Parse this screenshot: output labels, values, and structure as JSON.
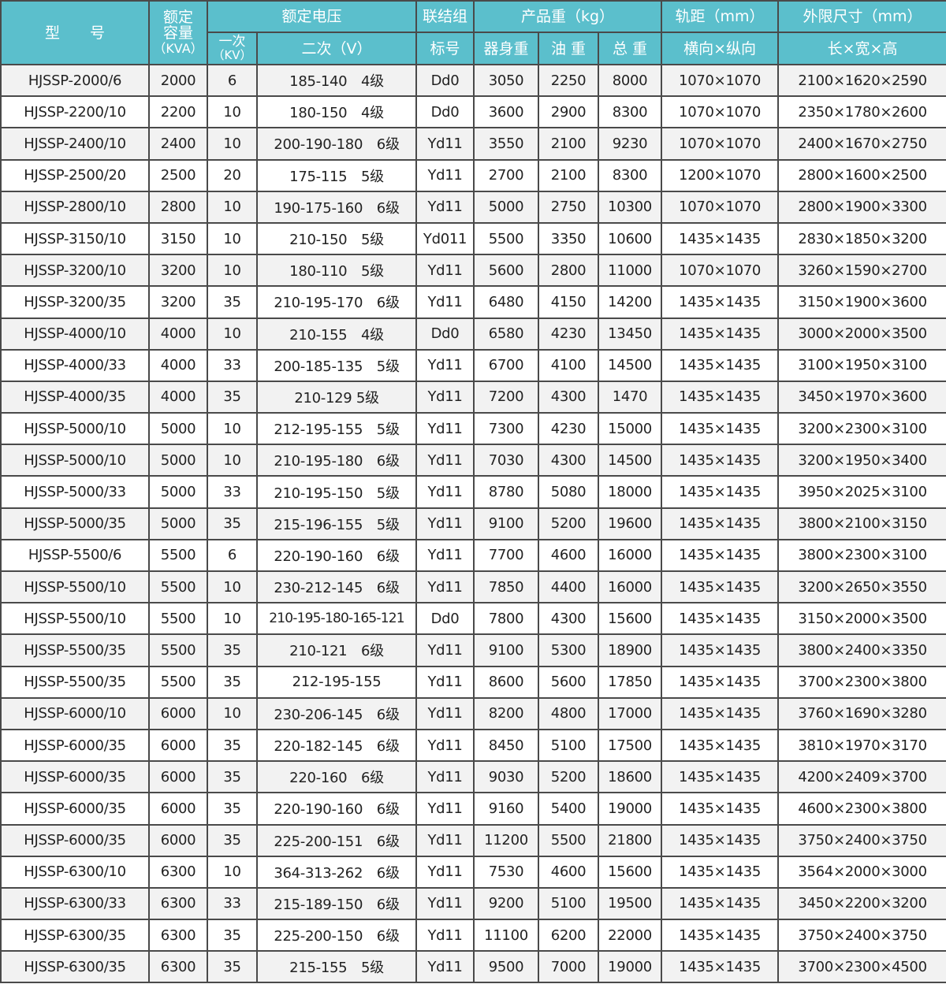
{
  "header": {
    "model": "型　　号",
    "capacity": [
      "额定",
      "容量",
      "（KVA）"
    ],
    "voltage": "额定电压",
    "primary": [
      "一次",
      "（KV）"
    ],
    "secondary": "二次（V）",
    "group": [
      "联结组",
      "标号"
    ],
    "weight": "产品重（kg）",
    "body_weight": "器身重",
    "oil_weight": "油 重",
    "total_weight": "总 重",
    "gauge": "轨距（mm）",
    "gauge_sub": "横向×纵向",
    "dims": "外限尺寸（mm）",
    "dims_sub": "长×宽×高"
  },
  "header_color": "#5bbfcc",
  "rows": [
    [
      "HJSSP-2000/6",
      "2000",
      "6",
      "185-140　4级",
      "Dd0",
      "3050",
      "2250",
      "8000",
      "1070×1070",
      "2100×1620×2590"
    ],
    [
      "HJSSP-2200/10",
      "2200",
      "10",
      "180-150　4级",
      "Dd0",
      "3600",
      "2900",
      "8300",
      "1070×1070",
      "2350×1780×2600"
    ],
    [
      "HJSSP-2400/10",
      "2400",
      "10",
      "200-190-180　6级",
      "Yd11",
      "3550",
      "2100",
      "9230",
      "1070×1070",
      "2400×1670×2750"
    ],
    [
      "HJSSP-2500/20",
      "2500",
      "20",
      "175-115　5级",
      "Yd11",
      "2700",
      "2100",
      "8300",
      "1200×1070",
      "2800×1600×2500"
    ],
    [
      "HJSSP-2800/10",
      "2800",
      "10",
      "190-175-160　6级",
      "Yd11",
      "5000",
      "2750",
      "10300",
      "1070×1070",
      "2800×1900×3300"
    ],
    [
      "HJSSP-3150/10",
      "3150",
      "10",
      "210-150　5级",
      "Yd011",
      "5500",
      "3350",
      "10600",
      "1435×1435",
      "2830×1850×3200"
    ],
    [
      "HJSSP-3200/10",
      "3200",
      "10",
      "180-110　5级",
      "Yd11",
      "5600",
      "2800",
      "11000",
      "1070×1070",
      "3260×1590×2700"
    ],
    [
      "HJSSP-3200/35",
      "3200",
      "35",
      "210-195-170　6级",
      "Yd11",
      "6480",
      "4150",
      "14200",
      "1435×1435",
      "3150×1900×3600"
    ],
    [
      "HJSSP-4000/10",
      "4000",
      "10",
      "210-155　4级",
      "Dd0",
      "6580",
      "4230",
      "13450",
      "1435×1435",
      "3000×2000×3500"
    ],
    [
      "HJSSP-4000/33",
      "4000",
      "33",
      "200-185-135　5级",
      "Yd11",
      "6700",
      "4100",
      "14500",
      "1435×1435",
      "3100×1950×3100"
    ],
    [
      "HJSSP-4000/35",
      "4000",
      "35",
      "210-129 5级",
      "Yd11",
      "7200",
      "4300",
      "1470",
      "1435×1435",
      "3450×1970×3600"
    ],
    [
      "HJSSP-5000/10",
      "5000",
      "10",
      "212-195-155　5级",
      "Yd11",
      "7300",
      "4230",
      "15000",
      "1435×1435",
      "3200×2300×3100"
    ],
    [
      "HJSSP-5000/10",
      "5000",
      "10",
      "210-195-180　6级",
      "Yd11",
      "7030",
      "4300",
      "14500",
      "1435×1435",
      "3200×1950×3400"
    ],
    [
      "HJSSP-5000/33",
      "5000",
      "33",
      "210-195-150　5级",
      "Yd11",
      "8780",
      "5080",
      "18000",
      "1435×1435",
      "3950×2025×3100"
    ],
    [
      "HJSSP-5000/35",
      "5000",
      "35",
      "215-196-155　5级",
      "Yd11",
      "9100",
      "5200",
      "19600",
      "1435×1435",
      "3800×2100×3150"
    ],
    [
      "HJSSP-5500/6",
      "5500",
      "6",
      "220-190-160　6级",
      "Yd11",
      "7700",
      "4600",
      "16000",
      "1435×1435",
      "3800×2300×3100"
    ],
    [
      "HJSSP-5500/10",
      "5500",
      "10",
      "230-212-145　6级",
      "Yd11",
      "7850",
      "4400",
      "16000",
      "1435×1435",
      "3200×2650×3550"
    ],
    [
      "HJSSP-5500/10",
      "5500",
      "10",
      "210-195-180-165-121",
      "Dd0",
      "7800",
      "4300",
      "15600",
      "1435×1435",
      "3150×2000×3500"
    ],
    [
      "HJSSP-5500/35",
      "5500",
      "35",
      "210-121　6级",
      "Yd11",
      "9100",
      "5300",
      "18900",
      "1435×1435",
      "3800×2400×3350"
    ],
    [
      "HJSSP-5500/35",
      "5500",
      "35",
      "212-195-155",
      "Yd11",
      "8600",
      "5600",
      "17850",
      "1435×1435",
      "3700×2300×3800"
    ],
    [
      "HJSSP-6000/10",
      "6000",
      "10",
      "230-206-145　6级",
      "Yd11",
      "8200",
      "4800",
      "17000",
      "1435×1435",
      "3760×1690×3280"
    ],
    [
      "HJSSP-6000/35",
      "6000",
      "35",
      "220-182-145　6级",
      "Yd11",
      "8450",
      "5100",
      "17500",
      "1435×1435",
      "3810×1970×3170"
    ],
    [
      "HJSSP-6000/35",
      "6000",
      "35",
      "220-160　6级",
      "Yd11",
      "9030",
      "5200",
      "18600",
      "1435×1435",
      "4200×2409×3700"
    ],
    [
      "HJSSP-6000/35",
      "6000",
      "35",
      "220-190-160　6级",
      "Yd11",
      "9160",
      "5400",
      "19000",
      "1435×1435",
      "4600×2300×3800"
    ],
    [
      "HJSSP-6000/35",
      "6000",
      "35",
      "225-200-151　6级",
      "Yd11",
      "11200",
      "5500",
      "21800",
      "1435×1435",
      "3750×2400×3750"
    ],
    [
      "HJSSP-6300/10",
      "6300",
      "10",
      "364-313-262　6级",
      "Yd11",
      "7530",
      "4600",
      "15600",
      "1435×1435",
      "3564×2000×3000"
    ],
    [
      "HJSSP-6300/33",
      "6300",
      "33",
      "215-189-150　6级",
      "Yd11",
      "9200",
      "5100",
      "19500",
      "1435×1435",
      "3450×2200×3200"
    ],
    [
      "HJSSP-6300/35",
      "6300",
      "35",
      "225-200-150　6级",
      "Yd11",
      "11100",
      "6200",
      "22000",
      "1435×1435",
      "3750×2400×3750"
    ],
    [
      "HJSSP-6300/35",
      "6300",
      "35",
      "215-155　5级",
      "Yd11",
      "9500",
      "7000",
      "19000",
      "1435×1435",
      "3700×2300×4500"
    ]
  ]
}
